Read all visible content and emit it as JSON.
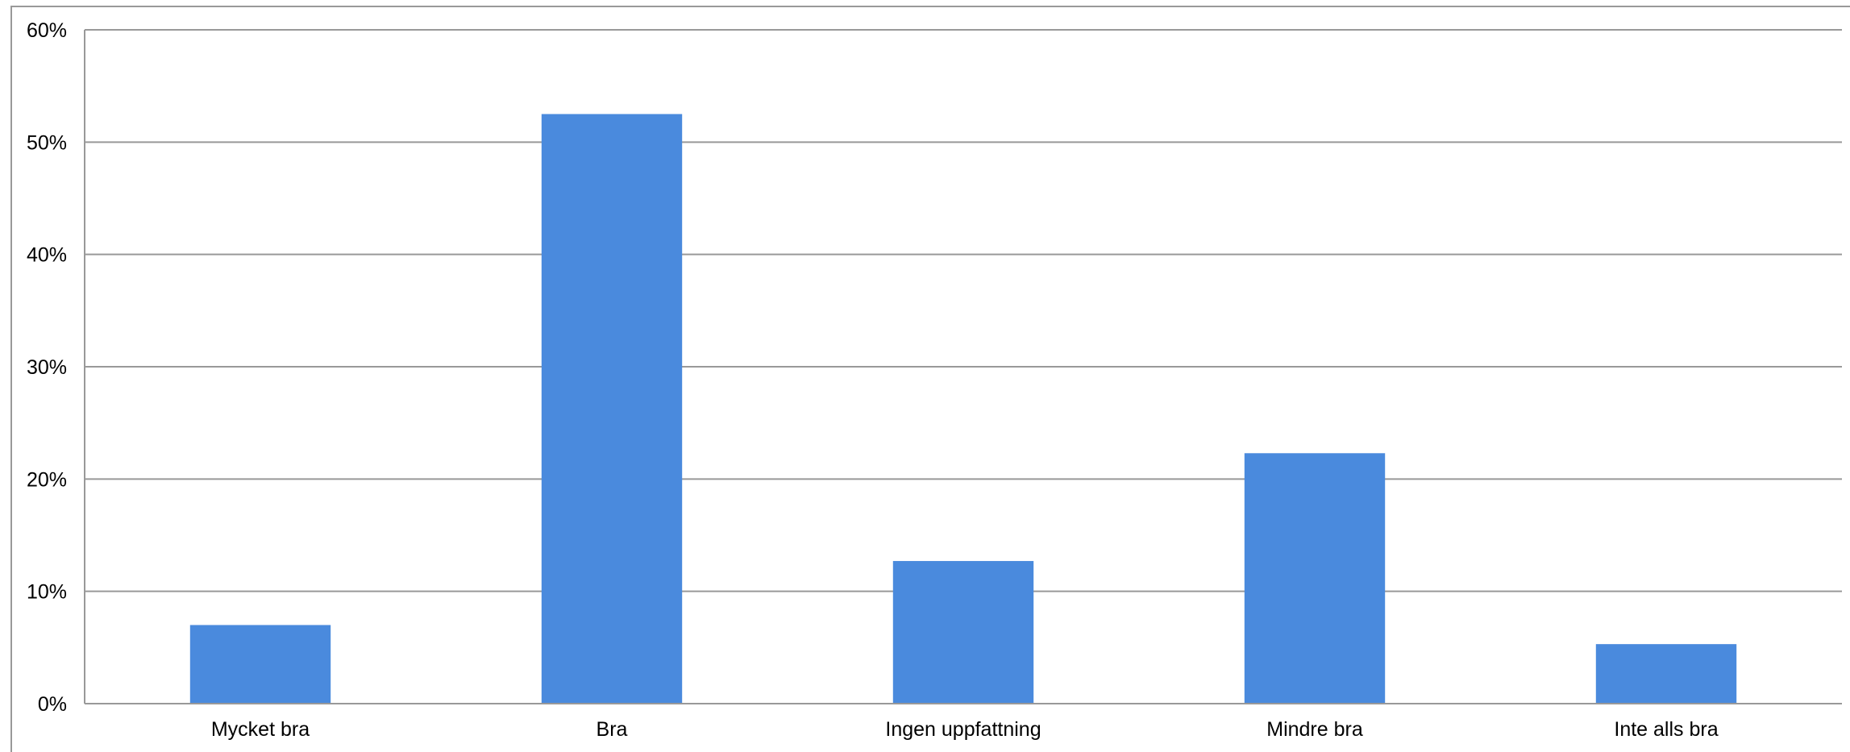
{
  "chart_data": {
    "type": "bar",
    "categories": [
      "Mycket bra",
      "Bra",
      "Ingen uppfattning",
      "Mindre bra",
      "Inte alls bra"
    ],
    "values": [
      7.0,
      52.5,
      12.7,
      22.3,
      5.3
    ],
    "ylim": [
      0,
      60
    ],
    "yticks": [
      0,
      10,
      20,
      30,
      40,
      50,
      60
    ],
    "ytick_labels": [
      "0%",
      "10%",
      "20%",
      "30%",
      "40%",
      "50%",
      "60%"
    ],
    "title": "",
    "xlabel": "",
    "ylabel": "",
    "grid": true,
    "legend": "none",
    "colors": {
      "bar": "#4a8add",
      "gridline": "#999999",
      "frame": "#999999"
    }
  }
}
